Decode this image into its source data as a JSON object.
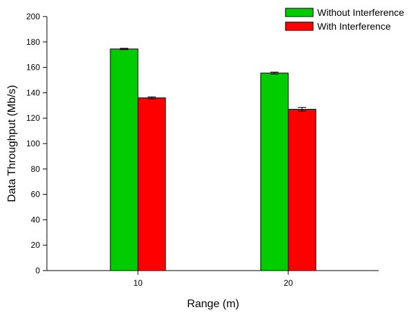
{
  "chart_data": {
    "type": "bar",
    "title": "",
    "xlabel": "Range (m)",
    "ylabel": "Data Throughput (Mb/s)",
    "categories": [
      "10",
      "20"
    ],
    "ylim": [
      0,
      200
    ],
    "yticks": [
      "0",
      "20",
      "40",
      "60",
      "80",
      "100",
      "120",
      "140",
      "160",
      "180",
      "200"
    ],
    "grid": false,
    "legend_position": "top-right",
    "series": [
      {
        "name": "Without Interference",
        "color": "#00cc00",
        "values": [
          174.5,
          155.5
        ],
        "errors": [
          0.5,
          0.8
        ]
      },
      {
        "name": "With Interference",
        "color": "#ff0000",
        "values": [
          136,
          127
        ],
        "errors": [
          0.8,
          1.5
        ]
      }
    ]
  }
}
